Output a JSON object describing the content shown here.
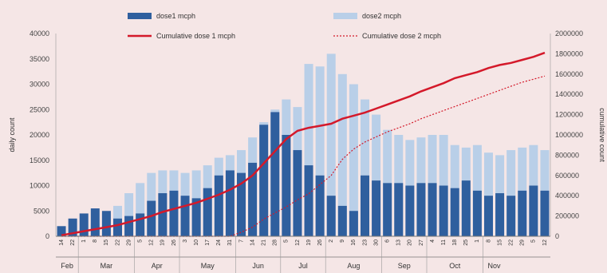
{
  "chart_data": {
    "type": "bar",
    "title": "",
    "xlabel": "",
    "ylabel": "daily count",
    "y2label": "cumulative count",
    "ylim": [
      0,
      40000
    ],
    "y2lim": [
      0,
      2000000
    ],
    "yticks": [
      "0",
      "5000",
      "10000",
      "15000",
      "20000",
      "25000",
      "30000",
      "35000",
      "40000"
    ],
    "y2ticks": [
      "0",
      "200000",
      "400000",
      "600000",
      "800000",
      "1000000",
      "1200000",
      "1400000",
      "1600000",
      "1800000",
      "2000000"
    ],
    "legend_position": "top",
    "grid": false,
    "colors": {
      "dose1": "#2f5f9e",
      "dose2": "#b9cfe8",
      "cum1": "#d4192a",
      "cum2": "#d4192a",
      "background": "#f5e6e6"
    },
    "months": [
      "Feb",
      "Mar",
      "Apr",
      "May",
      "Jun",
      "Jul",
      "Aug",
      "Sep",
      "Oct",
      "Nov"
    ],
    "month_week_counts": [
      2,
      5,
      4,
      5,
      4,
      4,
      5,
      4,
      5,
      2
    ],
    "week_day_labels": [
      "14",
      "22",
      "1",
      "8",
      "15",
      "22",
      "29",
      "5",
      "12",
      "19",
      "26",
      "3",
      "10",
      "17",
      "24",
      "31",
      "7",
      "14",
      "21",
      "28",
      "5",
      "12",
      "19",
      "26",
      "2",
      "9",
      "16",
      "23",
      "30",
      "6",
      "13",
      "20",
      "27",
      "4",
      "11",
      "18",
      "25",
      "1",
      "8",
      "15",
      "22",
      "29",
      "5",
      "12"
    ],
    "series": [
      {
        "name": "dose1 mcph",
        "type": "bar",
        "axis": "left",
        "values": [
          2000,
          3500,
          4500,
          5500,
          5000,
          3500,
          4000,
          4500,
          7000,
          8500,
          9000,
          8000,
          7500,
          9500,
          12000,
          13000,
          12500,
          14500,
          22000,
          24500,
          20000,
          17000,
          14000,
          12000,
          8000,
          6000,
          5000,
          12000,
          11000,
          10500,
          10500,
          10000,
          10500,
          10500,
          10000,
          9500,
          11000,
          9000,
          8000,
          8500,
          8000,
          9000,
          10000,
          9000
        ]
      },
      {
        "name": "dose2 mcph",
        "type": "bar",
        "axis": "left",
        "values": [
          0,
          500,
          1500,
          2500,
          4500,
          6000,
          8500,
          10500,
          12500,
          13000,
          13000,
          12500,
          13000,
          14000,
          15500,
          16000,
          17000,
          19500,
          22500,
          25000,
          27000,
          25500,
          34000,
          33500,
          36000,
          32000,
          30000,
          27000,
          24000,
          21000,
          20000,
          19000,
          19500,
          20000,
          20000,
          18000,
          17500,
          18000,
          16500,
          16000,
          17000,
          17500,
          18000,
          17000
        ]
      },
      {
        "name": "Cumulative dose 1 mcph",
        "type": "line",
        "axis": "right",
        "values": [
          10000,
          30000,
          50000,
          70000,
          90000,
          110000,
          140000,
          170000,
          200000,
          240000,
          270000,
          300000,
          330000,
          370000,
          410000,
          460000,
          520000,
          600000,
          720000,
          840000,
          960000,
          1040000,
          1070000,
          1090000,
          1110000,
          1160000,
          1190000,
          1220000,
          1260000,
          1300000,
          1340000,
          1380000,
          1430000,
          1470000,
          1510000,
          1560000,
          1590000,
          1620000,
          1660000,
          1690000,
          1710000,
          1740000,
          1770000,
          1810000
        ]
      },
      {
        "name": "Cumulative dose 2 mcph",
        "type": "line",
        "axis": "right",
        "values": [
          0,
          0,
          0,
          0,
          0,
          0,
          0,
          0,
          0,
          0,
          0,
          0,
          0,
          0,
          0,
          0,
          40000,
          90000,
          170000,
          230000,
          290000,
          360000,
          420000,
          510000,
          600000,
          760000,
          860000,
          930000,
          980000,
          1030000,
          1070000,
          1110000,
          1160000,
          1200000,
          1240000,
          1280000,
          1320000,
          1360000,
          1400000,
          1440000,
          1480000,
          1520000,
          1550000,
          1580000
        ]
      }
    ]
  }
}
